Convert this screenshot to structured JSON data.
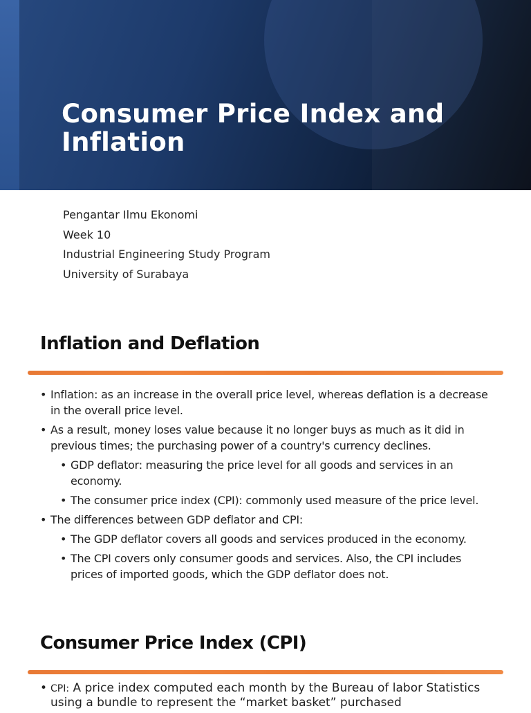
{
  "title_slide": {
    "title": "Consumer Price Index and Inflation",
    "subtitle_lines": [
      "Pengantar Ilmu Ekonomi",
      "Week 10",
      "Industrial Engineering Study Program",
      "University of Surabaya"
    ]
  },
  "slide_inflation": {
    "heading": "Inflation and Deflation",
    "bullets": [
      "Inflation: as an increase in the overall price level, whereas deflation is a decrease in the overall price level.",
      "As a result, money loses value because it no longer buys as much as it did in previous times; the purchasing power of a country's currency declines.",
      "GDP deflator: measuring the price level for all goods and services in an economy.",
      "The consumer price index (CPI): commonly used measure of the price level.",
      "The differences between GDP deflator and CPI:",
      "The GDP deflator covers all goods and services produced in the economy.",
      "The CPI covers only consumer goods and services. Also, the CPI includes prices of imported goods, which the GDP deflator does not."
    ]
  },
  "slide_cpi": {
    "heading": "Consumer Price Index (CPI)",
    "bullet_term": "CPI:",
    "bullet_text": " A price index computed each month by the Bureau of labor Statistics using a bundle to represent the “market basket” purchased"
  },
  "bullet_glyph": "•",
  "colors": {
    "banner_dark": "#10223f",
    "banner_light": "#27497f",
    "accent_orange": "#ec7b33",
    "title_text": "#ffffff"
  }
}
